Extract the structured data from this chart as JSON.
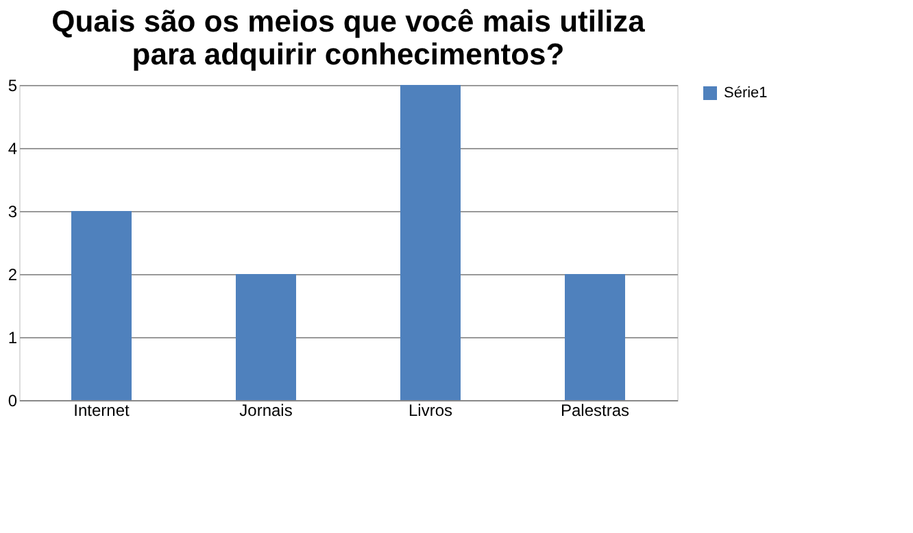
{
  "chart_data": {
    "type": "bar",
    "title": [
      "Quais são os meios que você mais utiliza",
      "para adquirir conhecimentos?"
    ],
    "categories": [
      "Internet",
      "Jornais",
      "Livros",
      "Palestras"
    ],
    "series": [
      {
        "name": "Série1",
        "color": "#4f81bd",
        "values": [
          3,
          2,
          5,
          2
        ]
      }
    ],
    "ylim": [
      0,
      5
    ],
    "yticks": [
      0,
      1,
      2,
      3,
      4,
      5
    ],
    "grid": "y",
    "legend": "right"
  }
}
